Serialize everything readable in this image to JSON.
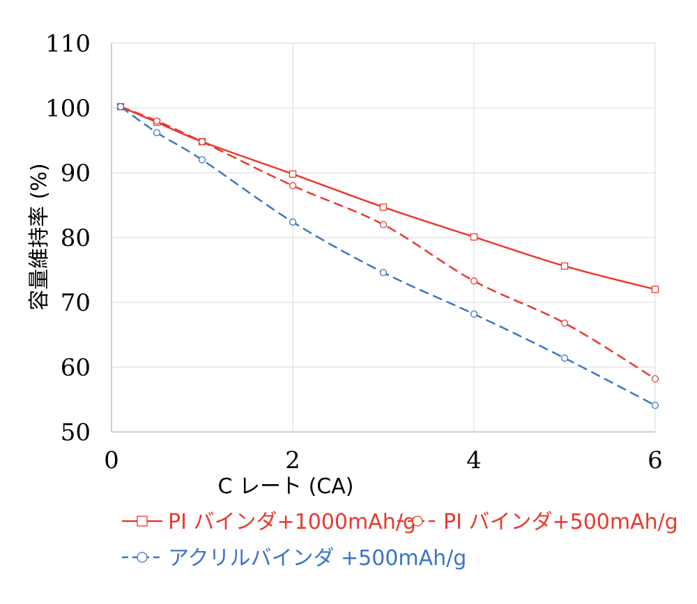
{
  "chart_data": {
    "type": "line",
    "title": "",
    "xlabel": "C レート (CA)",
    "ylabel": "容量維持率 (%)",
    "xlim": [
      0,
      6
    ],
    "ylim": [
      50,
      110
    ],
    "xticks": [
      0,
      2,
      4,
      6
    ],
    "yticks": [
      50,
      60,
      70,
      80,
      90,
      100,
      110
    ],
    "xtick_labels": [
      "0",
      "2",
      "4",
      "6"
    ],
    "ytick_labels": [
      "50",
      "60",
      "70",
      "80",
      "90",
      "100",
      "110"
    ],
    "grid": true,
    "legend_position": "bottom",
    "series": [
      {
        "name": "PI バインダ+1000mAh/g",
        "color": "#e8392c",
        "line_style": "solid",
        "marker": "square",
        "x": [
          0.1,
          0.5,
          1,
          2,
          3,
          4,
          5,
          6
        ],
        "y": [
          100.2,
          97.8,
          94.8,
          89.8,
          84.7,
          80.1,
          75.6,
          72.0
        ]
      },
      {
        "name": "PI バインダ+500mAh/g",
        "color": "#e8392c",
        "line_style": "dashed",
        "marker": "circle",
        "x": [
          0.1,
          0.5,
          1,
          2,
          3,
          4,
          5,
          6
        ],
        "y": [
          100.2,
          98.0,
          94.8,
          88.0,
          82.0,
          73.3,
          66.8,
          58.2
        ]
      },
      {
        "name": "アクリルバインダ +500mAh/g",
        "color": "#3a74c4",
        "line_style": "dashed",
        "marker": "circle",
        "x": [
          0.1,
          0.5,
          1,
          2,
          3,
          4,
          5,
          6
        ],
        "y": [
          100.2,
          96.2,
          92.0,
          82.4,
          74.6,
          68.2,
          61.4,
          54.1
        ]
      }
    ]
  }
}
